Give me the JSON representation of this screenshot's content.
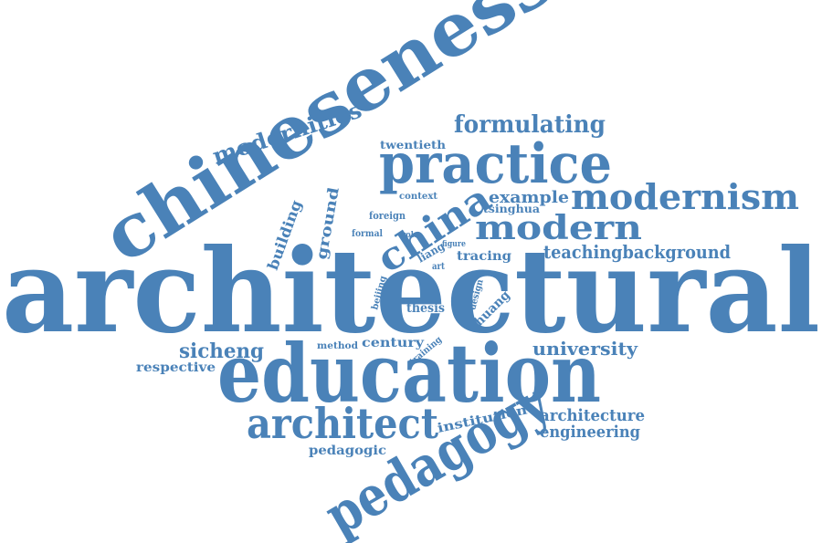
{
  "colors": {
    "word": "#4a82b8",
    "background": "#ffffff"
  },
  "words": [
    "architectural",
    "education",
    "chineseness",
    "practice",
    "pedagogy",
    "architect",
    "modernism",
    "modern",
    "china",
    "modernities",
    "formulating",
    "university",
    "teachingbackground",
    "architecture",
    "engineering",
    "sicheng",
    "example",
    "building",
    "ground",
    "thesis",
    "huang",
    "century",
    "institution",
    "pedagogic",
    "respective",
    "tracing",
    "twentieth",
    "tsinghua",
    "context",
    "foreign",
    "formal",
    "method",
    "training",
    "liang",
    "role",
    "figure",
    "art",
    "beijing",
    "design"
  ]
}
